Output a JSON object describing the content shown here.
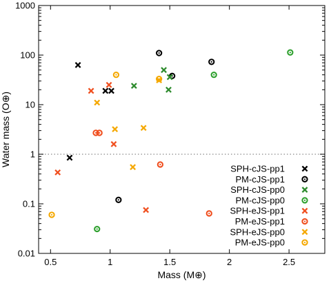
{
  "chart_data": {
    "type": "scatter",
    "title": "",
    "xlabel": "Mass (M⊕)",
    "ylabel": "Water mass (O⊕)",
    "xlim": [
      0.4,
      2.8
    ],
    "ylim": [
      0.01,
      1000
    ],
    "yscale": "log",
    "grid": false,
    "legend_position": "bottom-right",
    "x_ticks": [
      "0.5",
      "1",
      "1.5",
      "2",
      "2.5"
    ],
    "y_ticks": [
      "0.01",
      "0.1",
      "1",
      "10",
      "100",
      "1000"
    ],
    "reference_line": {
      "y": 1,
      "style": "dotted",
      "color": "#888888"
    },
    "series": [
      {
        "name": "SPH-cJS-pp1",
        "marker": "x",
        "color": "#000000",
        "points": [
          [
            0.66,
            0.85
          ],
          [
            0.73,
            63
          ],
          [
            0.96,
            19
          ],
          [
            1.01,
            19
          ]
        ]
      },
      {
        "name": "PM-cJS-pp1",
        "marker": "o",
        "color": "#000000",
        "points": [
          [
            1.07,
            0.12
          ],
          [
            1.41,
            110
          ],
          [
            1.52,
            38
          ],
          [
            1.85,
            73
          ]
        ]
      },
      {
        "name": "SPH-cJS-pp0",
        "marker": "x",
        "color": "#2e8b2e",
        "points": [
          [
            1.2,
            24
          ],
          [
            1.45,
            50
          ],
          [
            1.49,
            20
          ],
          [
            1.5,
            36
          ]
        ]
      },
      {
        "name": "PM-cJS-pp0",
        "marker": "o",
        "color": "#2ea02e",
        "points": [
          [
            0.89,
            0.031
          ],
          [
            1.87,
            40
          ],
          [
            2.51,
            113
          ]
        ]
      },
      {
        "name": "SPH-eJS-pp1",
        "marker": "x",
        "color": "#f05020",
        "points": [
          [
            0.56,
            0.43
          ],
          [
            0.84,
            19
          ],
          [
            0.99,
            25
          ],
          [
            1.03,
            1.6
          ],
          [
            1.3,
            0.075
          ]
        ]
      },
      {
        "name": "PM-eJS-pp1",
        "marker": "o",
        "color": "#f05020",
        "points": [
          [
            0.88,
            2.7
          ],
          [
            0.91,
            2.7
          ],
          [
            1.42,
            0.62
          ],
          [
            1.83,
            0.064
          ]
        ]
      },
      {
        "name": "SPH-eJS-pp0",
        "marker": "x",
        "color": "#f5a800",
        "points": [
          [
            0.89,
            11
          ],
          [
            1.04,
            3.2
          ],
          [
            1.19,
            0.55
          ],
          [
            1.28,
            3.4
          ],
          [
            1.41,
            31
          ]
        ]
      },
      {
        "name": "PM-eJS-pp0",
        "marker": "o",
        "color": "#f5a800",
        "points": [
          [
            0.51,
            0.06
          ],
          [
            1.05,
            40
          ],
          [
            1.41,
            33
          ]
        ]
      }
    ]
  }
}
